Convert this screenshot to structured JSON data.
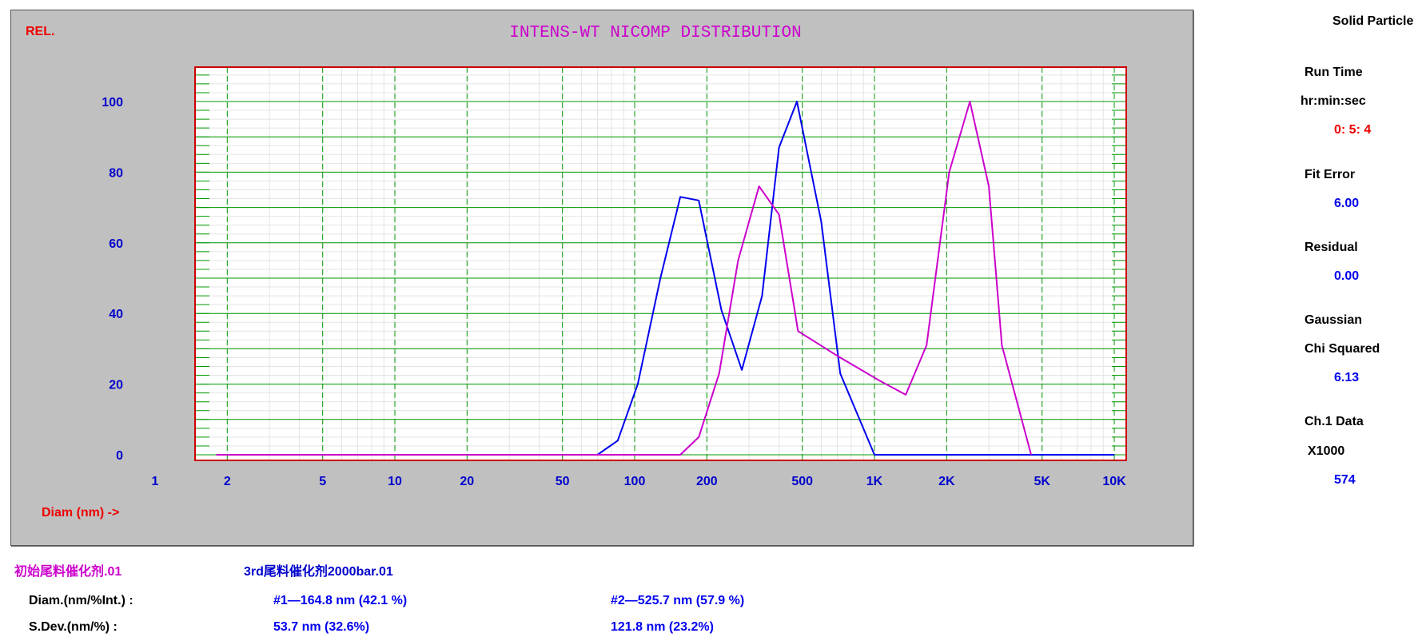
{
  "colors": {
    "panel_bg": "#c0c0c0",
    "grid_major": "#009900",
    "grid_minor": "#e4e4e4",
    "plot_border": "#cc0000",
    "series_1": "#0000ee",
    "series_2": "#cc00cc",
    "axis_text": "#0000cc",
    "label_red": "#ee0000"
  },
  "chart_data": {
    "type": "line",
    "title": "INTENS-WT NICOMP DISTRIBUTION",
    "ylabel": "REL.",
    "xlabel": "Diam (nm) ->",
    "xscale": "log",
    "xlim": [
      1,
      10000
    ],
    "ylim": [
      0,
      100
    ],
    "grid": true,
    "yticks": [
      "0",
      "20",
      "40",
      "60",
      "80",
      "100"
    ],
    "xticks": [
      "1",
      "2",
      "5",
      "10",
      "20",
      "50",
      "100",
      "200",
      "500",
      "1K",
      "2K",
      "5K",
      "10K"
    ],
    "series": [
      {
        "name": "3rd尾料催化剂2000bar.01",
        "color": "#0000ee",
        "x": [
          1.8,
          70,
          85,
          103,
          128,
          155,
          185,
          230,
          280,
          340,
          400,
          475,
          600,
          720,
          1000,
          10000
        ],
        "y": [
          0,
          0,
          4,
          20,
          50,
          73,
          72,
          41,
          24,
          45,
          87,
          100,
          66,
          23,
          0,
          0
        ]
      },
      {
        "name": "初始尾料催化剂.01",
        "color": "#cc00cc",
        "x": [
          1.8,
          155,
          185,
          225,
          270,
          330,
          400,
          480,
          700,
          1050,
          1350,
          1650,
          2050,
          2500,
          3000,
          3400,
          4500
        ],
        "y": [
          0,
          0,
          5,
          23,
          55,
          76,
          68,
          35,
          28,
          21,
          17,
          31,
          80,
          100,
          76,
          31,
          0
        ]
      }
    ]
  },
  "side_panel": {
    "mode": "Solid Particle",
    "run_time_label": "Run Time",
    "run_time_units": "hr:min:sec",
    "run_time_value": "0: 5: 4",
    "fit_error_label": "Fit Error",
    "fit_error_value": "6.00",
    "residual_label": "Residual",
    "residual_value": "0.00",
    "gaussian_label": "Gaussian",
    "chi_squared_label": "Chi Squared",
    "chi_squared_value": "6.13",
    "ch1_label": "Ch.1 Data",
    "multiplier_label": "X1000",
    "ch1_value": "574"
  },
  "footer": {
    "file_1": "初始尾料催化剂.01",
    "file_2": "3rd尾料催化剂2000bar.01",
    "diam_label": "Diam.(nm/%Int.) :",
    "diam_peak_1": "#1—164.8 nm (42.1 %)",
    "diam_peak_2": "#2—525.7 nm (57.9 %)",
    "sdev_label": "S.Dev.(nm/%) :",
    "sdev_peak_1": "53.7 nm (32.6%)",
    "sdev_peak_2": "121.8 nm (23.2%)"
  }
}
